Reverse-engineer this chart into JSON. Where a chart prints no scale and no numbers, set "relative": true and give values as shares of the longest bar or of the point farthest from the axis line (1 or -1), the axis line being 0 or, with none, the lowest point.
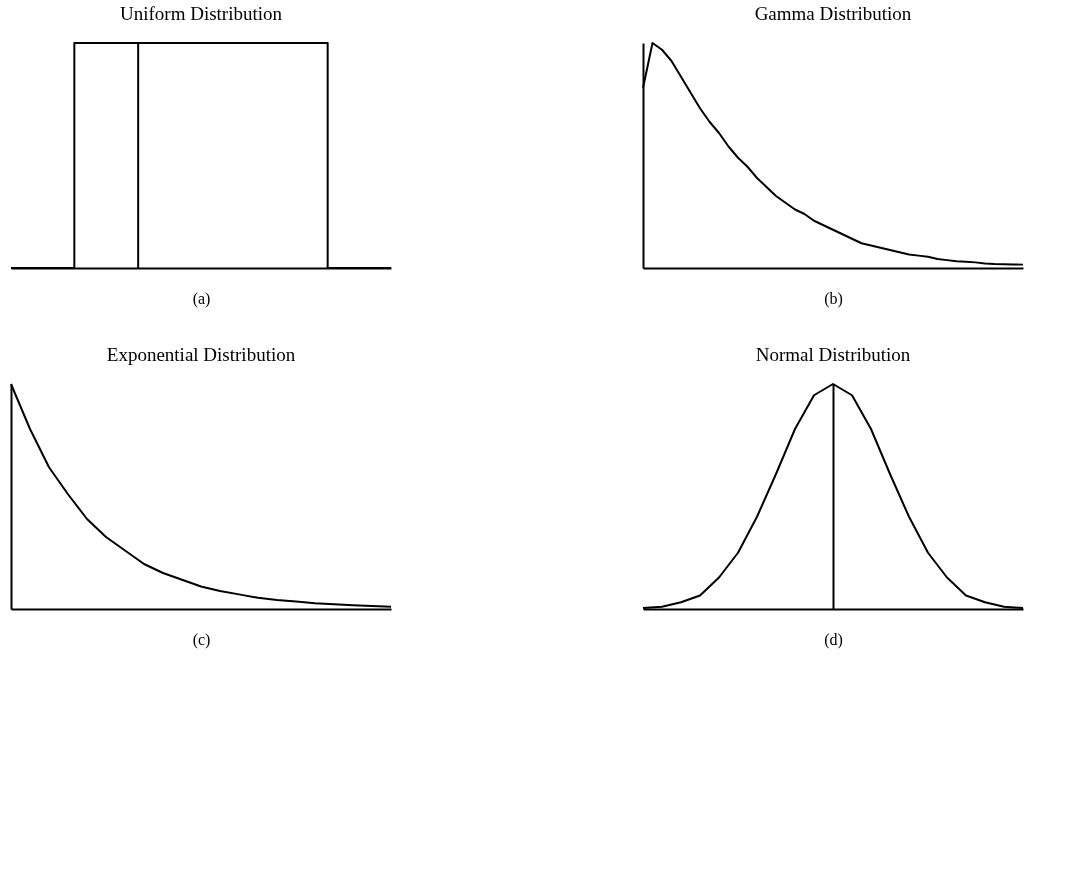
{
  "chart_data": [
    {
      "type": "step",
      "title": "Uniform Distribution",
      "xlabel": "(a)",
      "relative": true,
      "tick_labels": false,
      "grid": false,
      "legend": false,
      "categories": [
        null,
        null,
        null,
        null,
        null,
        null,
        null,
        null,
        null,
        null,
        null,
        null,
        null,
        null,
        null,
        null,
        null,
        null,
        null,
        null,
        null,
        null,
        null,
        null,
        null,
        null,
        null,
        null,
        null,
        null,
        null
      ],
      "series": [
        {
          "color": "#000000",
          "values": [
            0,
            0,
            0,
            0,
            0,
            1,
            1,
            1,
            1,
            1,
            1,
            1,
            1,
            1,
            1,
            1,
            1,
            1,
            1,
            1,
            1,
            1,
            1,
            1,
            1,
            0,
            0,
            0,
            0,
            0,
            0
          ]
        }
      ]
    },
    {
      "type": "line",
      "title": "Gamma Distribution",
      "xlabel": "(b)",
      "relative": true,
      "tick_labels": false,
      "grid": false,
      "legend": false,
      "categories": [
        null,
        null,
        null,
        null,
        null,
        null,
        null,
        null,
        null,
        null,
        null,
        null,
        null,
        null,
        null,
        null,
        null,
        null,
        null,
        null,
        null,
        null,
        null,
        null,
        null,
        null,
        null,
        null,
        null,
        null,
        null,
        null,
        null,
        null,
        null,
        null,
        null,
        null,
        null,
        null,
        null
      ],
      "series": [
        {
          "color": "#000000",
          "values": [
            0.8,
            1,
            0.97,
            0.92,
            0.85,
            0.78,
            0.71,
            0.65,
            0.6,
            0.54,
            0.49,
            0.45,
            0.4,
            0.36,
            0.32,
            0.29,
            0.26,
            0.24,
            0.21,
            0.19,
            0.17,
            0.15,
            0.13,
            0.11,
            0.1,
            0.09,
            0.08,
            0.07,
            0.06,
            0.055,
            0.05,
            0.04,
            0.035,
            0.03,
            0.028,
            0.025,
            0.02,
            0.018,
            0.017,
            0.016,
            0.015
          ]
        }
      ]
    },
    {
      "type": "line",
      "title": "Exponential Distribution",
      "xlabel": "(c)",
      "relative": true,
      "tick_labels": false,
      "grid": false,
      "legend": false,
      "categories": [
        null,
        null,
        null,
        null,
        null,
        null,
        null,
        null,
        null,
        null,
        null,
        null,
        null,
        null,
        null,
        null,
        null,
        null,
        null,
        null,
        null
      ],
      "series": [
        {
          "color": "#000000",
          "values": [
            1,
            0.8,
            0.63,
            0.51,
            0.4,
            0.32,
            0.26,
            0.2,
            0.16,
            0.13,
            0.1,
            0.08,
            0.065,
            0.05,
            0.04,
            0.033,
            0.026,
            0.021,
            0.017,
            0.013,
            0.01
          ]
        }
      ]
    },
    {
      "type": "line",
      "title": "Normal Distribution",
      "xlabel": "(d)",
      "relative": true,
      "tick_labels": false,
      "grid": false,
      "legend": false,
      "categories": [
        null,
        null,
        null,
        null,
        null,
        null,
        null,
        null,
        null,
        null,
        null,
        null,
        null,
        null,
        null,
        null,
        null,
        null,
        null,
        null,
        null
      ],
      "series": [
        {
          "color": "#000000",
          "values": [
            0.004,
            0.01,
            0.03,
            0.06,
            0.14,
            0.25,
            0.41,
            0.6,
            0.8,
            0.95,
            1,
            0.95,
            0.8,
            0.6,
            0.41,
            0.25,
            0.14,
            0.06,
            0.03,
            0.01,
            0.004
          ]
        }
      ]
    }
  ]
}
